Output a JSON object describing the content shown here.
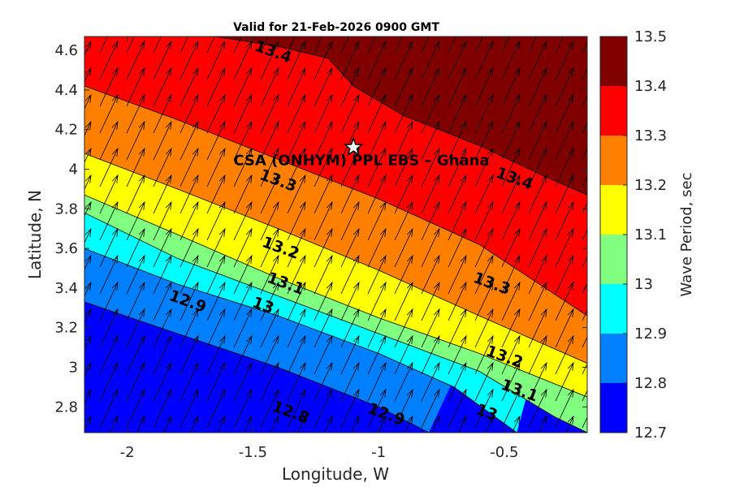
{
  "chart_data": {
    "type": "heatmap",
    "subtype": "filled-contour-with-vectors",
    "title": "Valid for 21-Feb-2026 0900 GMT",
    "xlabel": "Longitude, W",
    "ylabel": "Latitude, N",
    "xlim": [
      -2.17,
      -0.17
    ],
    "ylim": [
      2.67,
      4.67
    ],
    "xticks": [
      -2,
      -1.5,
      -1,
      -0.5
    ],
    "xtick_labels": [
      "-2",
      "-1.5",
      "-1",
      "-0.5"
    ],
    "yticks": [
      2.8,
      3.0,
      3.2,
      3.4,
      3.6,
      3.8,
      4.0,
      4.2,
      4.4,
      4.6
    ],
    "ytick_labels": [
      "2.8",
      "3",
      "3.2",
      "3.4",
      "3.6",
      "3.8",
      "4",
      "4.2",
      "4.4",
      "4.6"
    ],
    "colorbar": {
      "label": "Wave Period, sec",
      "levels": [
        12.7,
        12.8,
        12.9,
        13.0,
        13.1,
        13.2,
        13.3,
        13.4,
        13.5
      ],
      "tick_labels": [
        "12.7",
        "12.8",
        "12.9",
        "13",
        "13.1",
        "13.2",
        "13.3",
        "13.4",
        "13.5"
      ],
      "colors": [
        "#0000ff",
        "#0080ff",
        "#00ffff",
        "#80ff80",
        "#ffff00",
        "#ff8000",
        "#ff0000",
        "#800000"
      ]
    },
    "contours": [
      {
        "level": 12.8,
        "points": [
          [
            -2.17,
            3.33
          ],
          [
            -1.8,
            3.17
          ],
          [
            -1.4,
            3.0
          ],
          [
            -1.0,
            2.8
          ],
          [
            -0.8,
            2.67
          ]
        ]
      },
      {
        "level": 12.9,
        "points": [
          [
            -2.17,
            3.6
          ],
          [
            -1.8,
            3.42
          ],
          [
            -1.4,
            3.26
          ],
          [
            -1.0,
            3.07
          ],
          [
            -0.7,
            2.9
          ],
          [
            -0.45,
            2.67
          ]
        ]
      },
      {
        "level": 13.0,
        "points": [
          [
            -2.17,
            3.78
          ],
          [
            -1.8,
            3.55
          ],
          [
            -1.4,
            3.36
          ],
          [
            -1.0,
            3.17
          ],
          [
            -0.6,
            2.98
          ],
          [
            -0.3,
            2.75
          ],
          [
            -0.17,
            2.67
          ]
        ]
      },
      {
        "level": 13.1,
        "points": [
          [
            -2.17,
            3.87
          ],
          [
            -1.8,
            3.67
          ],
          [
            -1.4,
            3.45
          ],
          [
            -1.0,
            3.25
          ],
          [
            -0.6,
            3.07
          ],
          [
            -0.17,
            2.85
          ]
        ]
      },
      {
        "level": 13.2,
        "points": [
          [
            -2.17,
            4.08
          ],
          [
            -1.8,
            3.9
          ],
          [
            -1.4,
            3.7
          ],
          [
            -1.0,
            3.49
          ],
          [
            -0.6,
            3.26
          ],
          [
            -0.17,
            3.02
          ]
        ]
      },
      {
        "level": 13.3,
        "points": [
          [
            -2.17,
            4.42
          ],
          [
            -1.8,
            4.25
          ],
          [
            -1.4,
            4.05
          ],
          [
            -1.0,
            3.85
          ],
          [
            -0.6,
            3.62
          ],
          [
            -0.17,
            3.26
          ]
        ]
      },
      {
        "level": 13.4,
        "points": [
          [
            -1.65,
            4.67
          ],
          [
            -1.4,
            4.62
          ],
          [
            -1.2,
            4.56
          ],
          [
            -1.1,
            4.42
          ],
          [
            -0.9,
            4.27
          ],
          [
            -0.6,
            4.12
          ],
          [
            -0.35,
            3.97
          ],
          [
            -0.17,
            3.87
          ]
        ]
      }
    ],
    "contour_labels": [
      {
        "text": "13.4",
        "lon": -1.42,
        "lat": 4.59,
        "angle": 20
      },
      {
        "text": "13.4",
        "lon": -0.46,
        "lat": 3.95,
        "angle": 20
      },
      {
        "text": "13.3",
        "lon": -1.4,
        "lat": 3.94,
        "angle": 20
      },
      {
        "text": "13.3",
        "lon": -0.55,
        "lat": 3.42,
        "angle": 20
      },
      {
        "text": "13.2",
        "lon": -1.39,
        "lat": 3.6,
        "angle": 20
      },
      {
        "text": "13.2",
        "lon": -0.5,
        "lat": 3.05,
        "angle": 20
      },
      {
        "text": "13.1",
        "lon": -1.37,
        "lat": 3.42,
        "angle": 20
      },
      {
        "text": "13.1",
        "lon": -0.44,
        "lat": 2.88,
        "angle": 20
      },
      {
        "text": "13",
        "lon": -1.46,
        "lat": 3.31,
        "angle": 20
      },
      {
        "text": "13",
        "lon": -0.57,
        "lat": 2.77,
        "angle": 20
      },
      {
        "text": "12.9",
        "lon": -1.76,
        "lat": 3.33,
        "angle": 20
      },
      {
        "text": "12.9",
        "lon": -0.97,
        "lat": 2.76,
        "angle": 20
      },
      {
        "text": "12.8",
        "lon": -1.35,
        "lat": 2.77,
        "angle": 20
      }
    ],
    "vector_field": {
      "description": "wave direction arrows pointing north-north-east",
      "direction_deg": 25
    },
    "annotations": [
      {
        "type": "star",
        "label": "CSA (ONHYM) PPL EBS  – Ghana",
        "lon": -1.1,
        "lat": 4.11
      }
    ]
  }
}
